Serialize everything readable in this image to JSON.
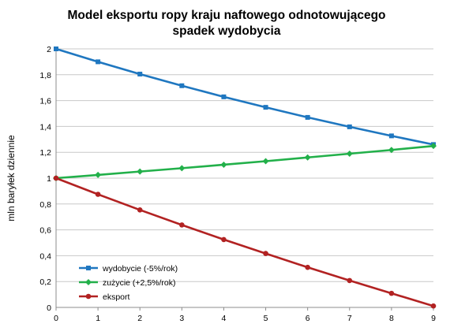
{
  "chart_data": {
    "type": "line",
    "title_lines": [
      "Model eksportu ropy kraju naftowego odnotowującego",
      "spadek wydobycia"
    ],
    "xlabel": "",
    "ylabel": "mln baryłek dziennie",
    "x": [
      0,
      1,
      2,
      3,
      4,
      5,
      6,
      7,
      8,
      9
    ],
    "x_tick_labels": [
      "0",
      "1",
      "2",
      "3",
      "4",
      "5",
      "6",
      "7",
      "8",
      "9"
    ],
    "xlim": [
      0,
      9
    ],
    "ylim": [
      0,
      2
    ],
    "y_ticks": [
      0,
      0.2,
      0.4,
      0.6,
      0.8,
      1,
      1.2,
      1.4,
      1.6,
      1.8,
      2
    ],
    "y_tick_labels": [
      "0",
      "0,2",
      "0,4",
      "0,6",
      "0,8",
      "1",
      "1,2",
      "1,4",
      "1,6",
      "1,8",
      "2"
    ],
    "grid": "horizontal",
    "legend_position": "bottom-left",
    "series": [
      {
        "name": "wydobycie (-5%/rok)",
        "color": "#1f77c0",
        "marker": "square",
        "values": [
          2.0,
          1.9,
          1.805,
          1.715,
          1.629,
          1.548,
          1.47,
          1.397,
          1.327,
          1.26
        ]
      },
      {
        "name": "zużycie (+2,5%/rok)",
        "color": "#22b04a",
        "marker": "diamond",
        "values": [
          1.0,
          1.025,
          1.051,
          1.077,
          1.104,
          1.131,
          1.16,
          1.189,
          1.218,
          1.249
        ]
      },
      {
        "name": "eksport",
        "color": "#b22222",
        "marker": "circle",
        "values": [
          1.0,
          0.875,
          0.754,
          0.638,
          0.525,
          0.417,
          0.31,
          0.208,
          0.109,
          0.011
        ]
      }
    ]
  }
}
